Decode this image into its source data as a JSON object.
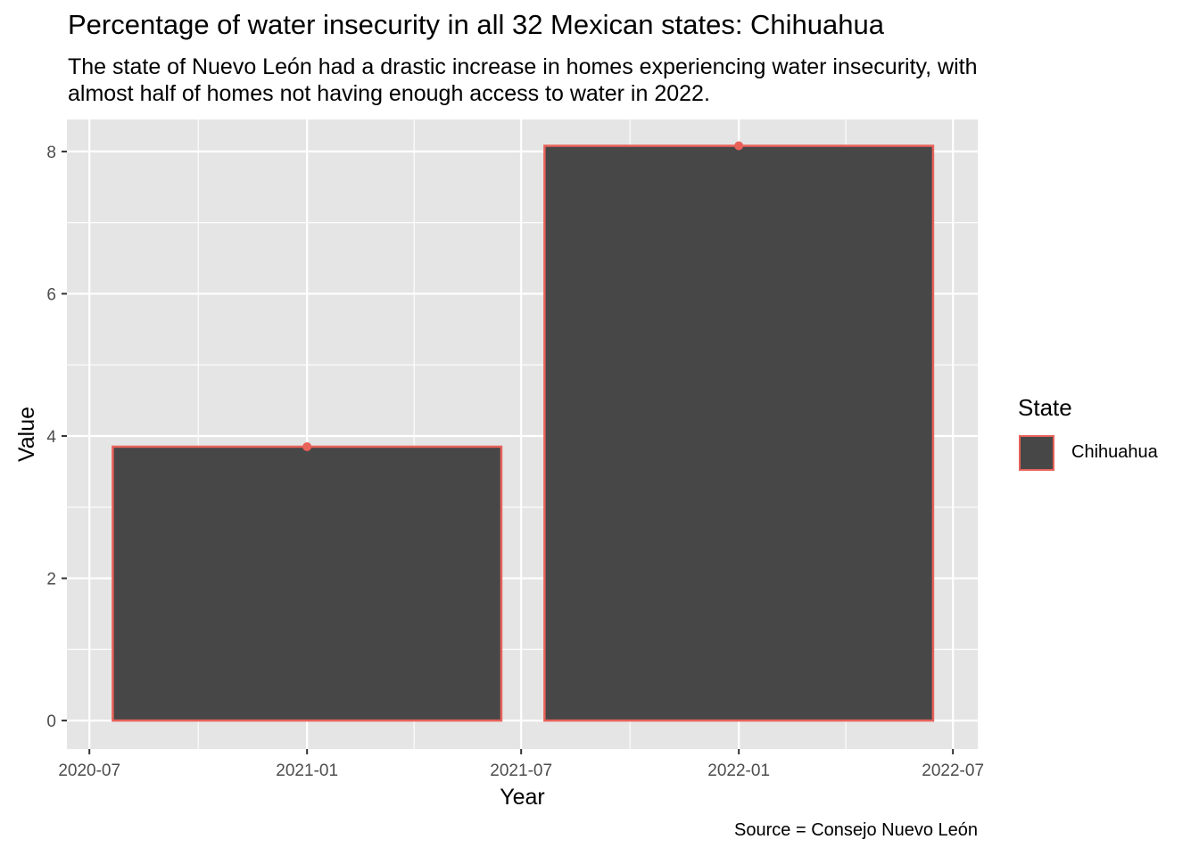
{
  "chart_data": {
    "type": "bar",
    "title": "Percentage of water insecurity in all 32 Mexican states: Chihuahua",
    "subtitle": "The state of Nuevo León had a drastic increase in homes experiencing water insecurity, with almost half of homes not having enough access to water in 2022.",
    "caption": "Source = Consejo Nuevo León",
    "xlabel": "Year",
    "ylabel": "Value",
    "x": [
      "2021-01-01",
      "2022-01-01"
    ],
    "series": [
      {
        "name": "Chihuahua",
        "values": [
          3.85,
          8.08
        ]
      }
    ],
    "ylim": [
      -0.4,
      8.45
    ],
    "xlim": [
      "2020-06-12",
      "2022-07-22"
    ],
    "x_ticks": [
      "2020-07",
      "2021-01",
      "2021-07",
      "2022-01",
      "2022-07"
    ],
    "y_ticks": [
      0,
      2,
      4,
      6,
      8
    ],
    "legend": {
      "title": "State",
      "position": "right"
    },
    "grid": true,
    "colors": {
      "panel": "#e5e5e5",
      "bar_fill": "#474747",
      "bar_outline": "#e8625a",
      "grid": "#ffffff"
    }
  }
}
